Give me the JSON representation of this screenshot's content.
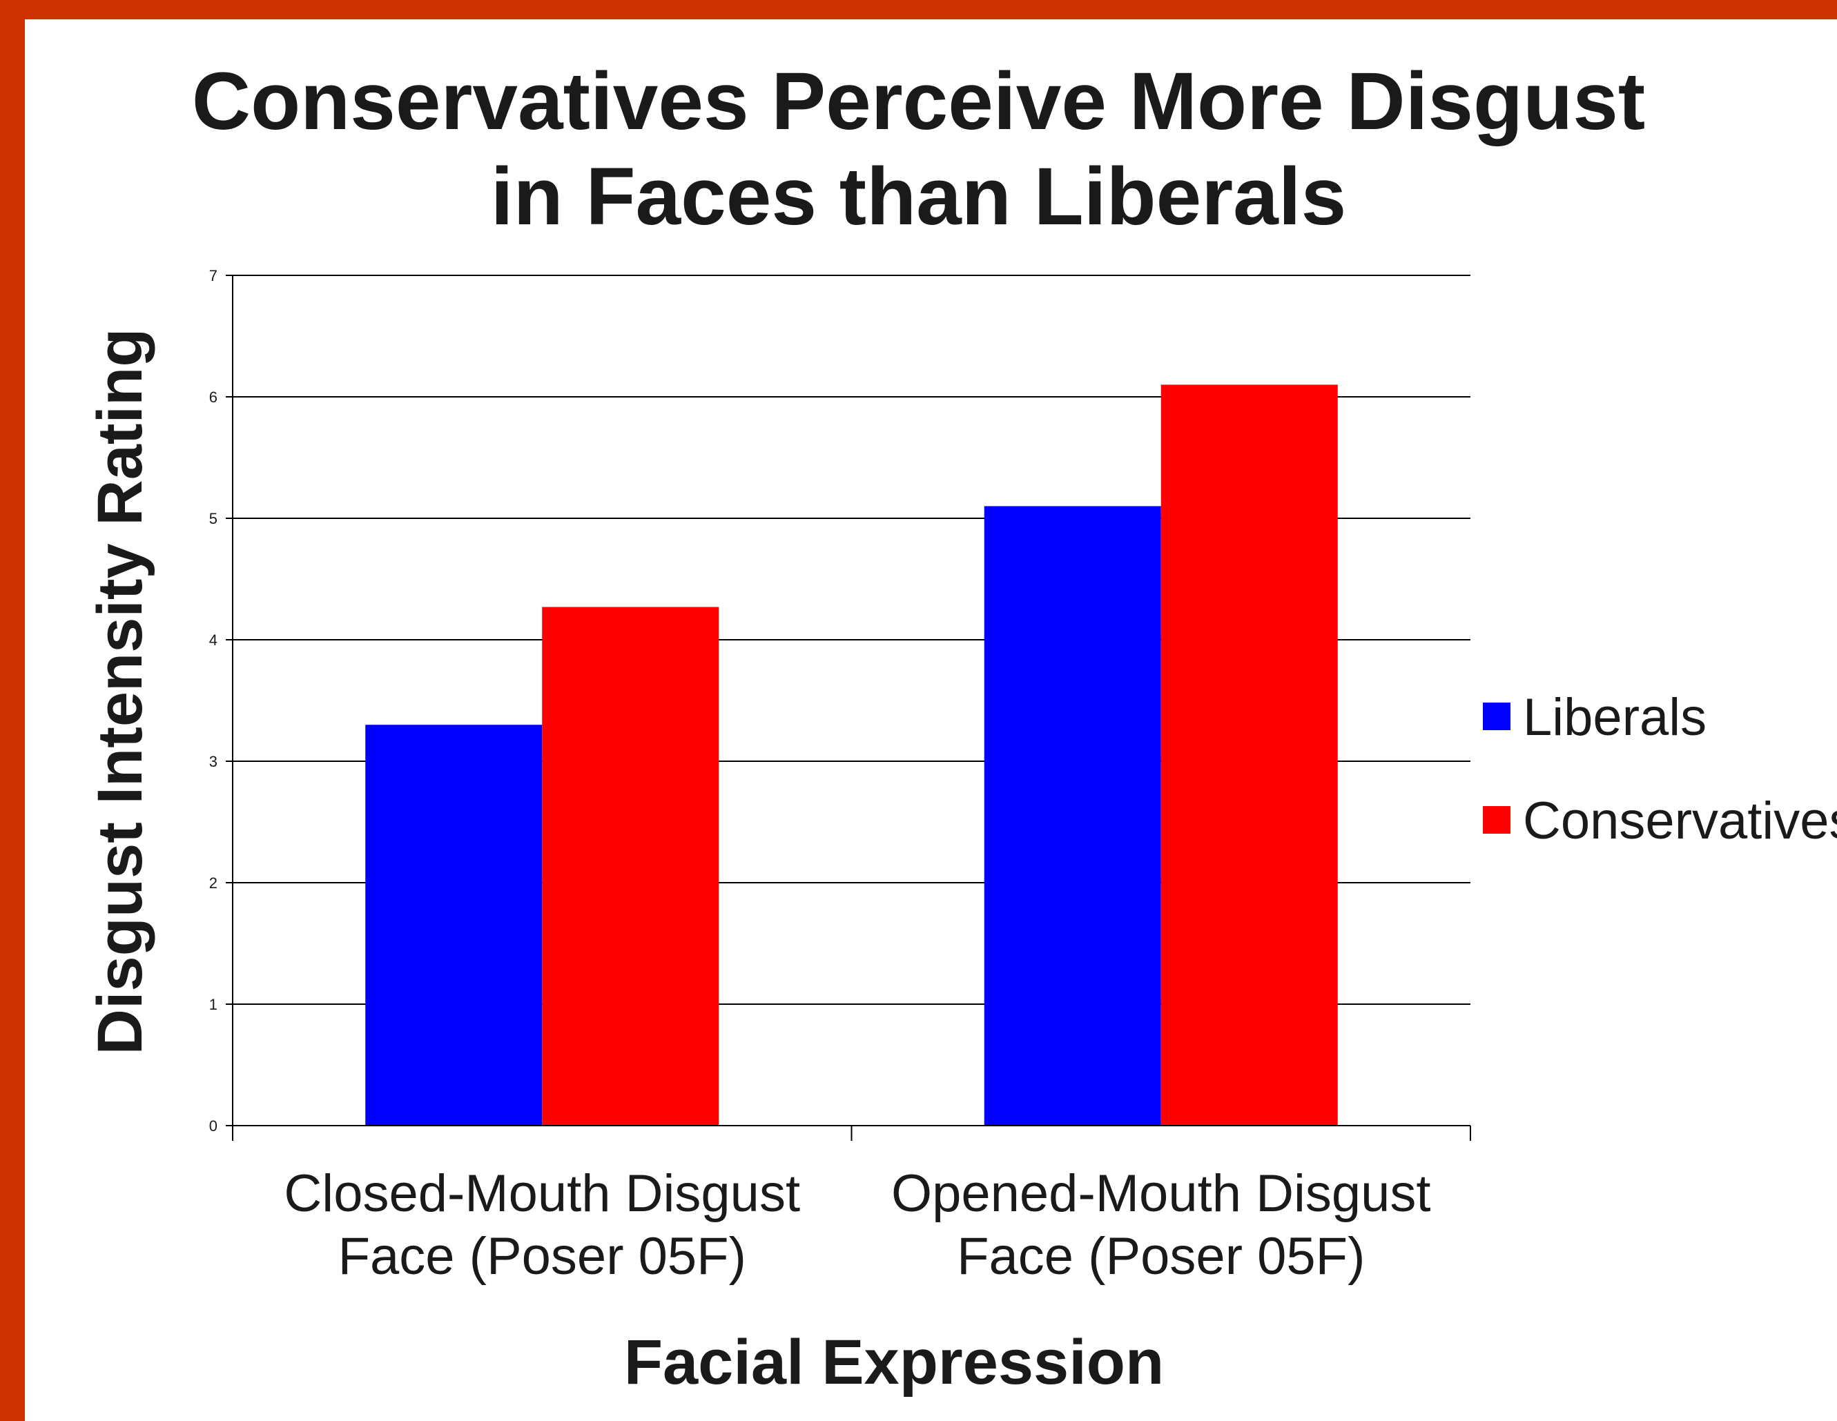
{
  "chart_data": {
    "type": "bar",
    "title_lines": [
      "Conservatives Perceive More Disgust",
      "in Faces than Liberals"
    ],
    "xlabel": "Facial Expression",
    "ylabel": "Disgust Intensity Rating",
    "categories": [
      [
        "Closed-Mouth Disgust",
        "Face (Poser 05F)"
      ],
      [
        "Opened-Mouth Disgust",
        "Face (Poser 05F)"
      ]
    ],
    "series": [
      {
        "name": "Liberals",
        "color": "#0000ff",
        "values": [
          3.3,
          5.1
        ]
      },
      {
        "name": "Conservatives",
        "color": "#ff0000",
        "values": [
          4.27,
          6.1
        ]
      }
    ],
    "ylim": [
      0,
      7
    ],
    "yticks": [
      0,
      1,
      2,
      3,
      4,
      5,
      6,
      7
    ],
    "grid": true,
    "legend_position": "right"
  },
  "colors": {
    "border": "#cc3300",
    "background": "#ffffff",
    "text": "#1a1a1a"
  }
}
